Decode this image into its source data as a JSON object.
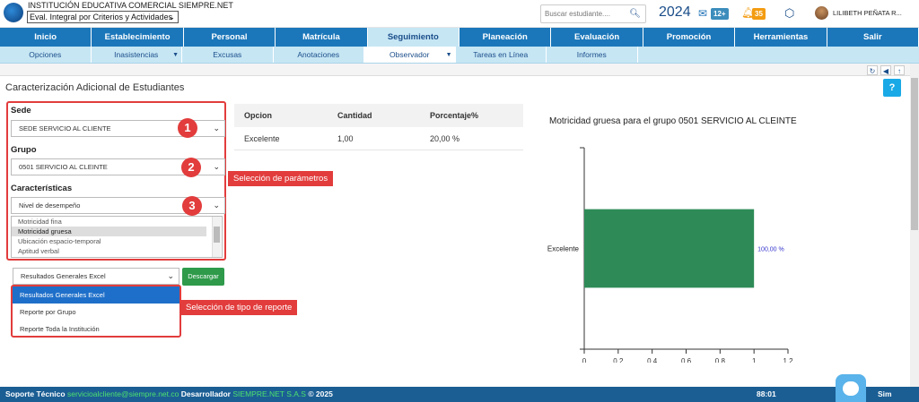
{
  "header": {
    "institution": "INSTITUCIÓN EDUCATIVA COMERCIAL SIEMPRE.NET",
    "eval_select": "Eval. Integral por Criterios y Actividades",
    "search_placeholder": "Buscar estudiante....",
    "year": "2024",
    "mail_badge": "12+",
    "bell_badge": "35",
    "user": "LILIBETH PEÑATA R..."
  },
  "nav": {
    "main": [
      "Inicio",
      "Establecimiento",
      "Personal",
      "Matrícula",
      "Seguimiento",
      "Planeación",
      "Evaluación",
      "Promoción",
      "Herramientas",
      "Salir"
    ],
    "sub": [
      "Opciones",
      "Inasistencias",
      "Excusas",
      "Anotaciones",
      "Observador",
      "Tareas en Línea",
      "Informes"
    ]
  },
  "page": {
    "title": "Caracterización Adicional de Estudiantes",
    "help": "?"
  },
  "form": {
    "sede_label": "Sede",
    "sede_value": "SEDE SERVICIO AL CLIENTE",
    "grupo_label": "Grupo",
    "grupo_value": "0501 SERVICIO AL CLEINTE",
    "caracteristicas_label": "Características",
    "caracteristicas_value": "Nivel de desempeño",
    "list_options": [
      "Motricidad fina",
      "Motricidad gruesa",
      "Ubicación espacio-temporal",
      "Aptitud verbal"
    ],
    "report_value": "Resultados Generales Excel",
    "download_label": "Descargar",
    "report_options": [
      "Resultados Generales Excel",
      "Reporte por Grupo",
      "Reporte Toda la Institución"
    ]
  },
  "callouts": {
    "n1": "1",
    "n2": "2",
    "n3": "3",
    "params": "Selección de parámetros",
    "report_type": "Selección de tipo de reporte"
  },
  "table": {
    "headers": [
      "Opcion",
      "Cantidad",
      "Porcentaje%"
    ],
    "rows": [
      [
        "Excelente",
        "1,00",
        "20,00 %"
      ]
    ]
  },
  "chart_data": {
    "type": "bar",
    "orientation": "horizontal",
    "title": "Motricidad gruesa para el grupo 0501 SERVICIO AL CLEINTE",
    "categories": [
      "Excelente"
    ],
    "values": [
      1.0
    ],
    "data_labels": [
      "100,00 %"
    ],
    "xlim": [
      0,
      1.2
    ],
    "xticks": [
      "0",
      "0.2",
      "0.4",
      "0.6",
      "0.8",
      "1",
      "1.2"
    ],
    "bar_color": "#2e8b57",
    "label_color": "#3333cc"
  },
  "footer": {
    "support_label": "Soporte Técnico",
    "support_email": "servicioalcliente@siempre.net.co",
    "dev_label": "Desarrollador",
    "dev_name": "SIEMPRE.NET S.A.S",
    "copyright": "© 2025",
    "clock": "88:01",
    "partial": "Sim"
  },
  "colors": {
    "nav": "#1b77ba",
    "subnav": "#c6e6f4",
    "accent_red": "#e23c3c",
    "download_green": "#2e9a4a",
    "footer": "#1b5e94"
  }
}
